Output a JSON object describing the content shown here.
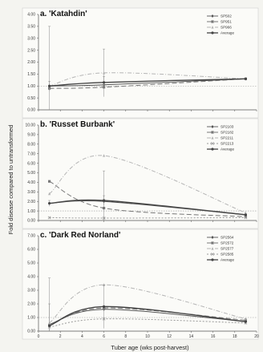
{
  "figure": {
    "ylabel": "Fold disease compared to untransformed",
    "xlabel": "Tuber age (wks post-harvest)",
    "x_ticks": [
      0,
      2,
      4,
      6,
      8,
      10,
      12,
      14,
      16,
      18,
      20
    ]
  },
  "chart_data": [
    {
      "type": "line",
      "panel": "a.",
      "title": "'Katahdin'",
      "ylim": [
        0,
        4.0
      ],
      "yticks": [
        "0.00",
        "0.50",
        "1.00",
        "1.50",
        "2.00",
        "2.50",
        "3.00",
        "3.50",
        "4.00"
      ],
      "xlim": [
        0,
        20
      ],
      "x": [
        1,
        6,
        19
      ],
      "series": [
        {
          "name": "SP502",
          "values": [
            1.0,
            1.05,
            1.3
          ],
          "color": "#555555",
          "dash": "",
          "marker": "diamond",
          "error": [
            0.05,
            0.05,
            0.05
          ]
        },
        {
          "name": "SP951",
          "values": [
            0.9,
            0.95,
            1.3
          ],
          "color": "#777777",
          "dash": "6,3",
          "marker": "square",
          "error": [
            0.05,
            0.05,
            0.05
          ]
        },
        {
          "name": "SP966",
          "values": [
            1.0,
            1.55,
            1.3
          ],
          "color": "#b5b5b5",
          "dash": "5,2,1,2",
          "marker": "triangle",
          "error": [
            2.5,
            1.0,
            0.05
          ]
        },
        {
          "name": "Average",
          "values": [
            1.0,
            1.15,
            1.3
          ],
          "color": "#444444",
          "dash": "",
          "marker": "circle",
          "bold": true,
          "error": [
            0.2,
            0.25,
            0.05
          ]
        }
      ]
    },
    {
      "type": "line",
      "panel": "b.",
      "title": "'Russet Burbank'",
      "ylim": [
        0,
        10.0
      ],
      "yticks": [
        "0.00",
        "1.00",
        "2.00",
        "3.00",
        "4.00",
        "5.00",
        "6.00",
        "7.00",
        "8.00",
        "9.00",
        "10.00"
      ],
      "xlim": [
        0,
        20
      ],
      "x": [
        1,
        6,
        19
      ],
      "series": [
        {
          "name": "SP2103",
          "values": [
            1.8,
            2.0,
            0.6
          ],
          "color": "#555555",
          "dash": "",
          "marker": "diamond",
          "error": [
            0.05,
            3.2,
            0.05
          ]
        },
        {
          "name": "SP2182",
          "values": [
            4.1,
            1.3,
            0.4
          ],
          "color": "#777777",
          "dash": "6,3",
          "marker": "square",
          "error": [
            0.05,
            0.05,
            0.05
          ]
        },
        {
          "name": "SP2211",
          "values": [
            2.8,
            6.8,
            0.8
          ],
          "color": "#b5b5b5",
          "dash": "5,2,1,2",
          "marker": "triangle",
          "error": [
            0.05,
            0.05,
            0.05
          ]
        },
        {
          "name": "SP2213",
          "values": [
            0.3,
            0.25,
            0.3
          ],
          "color": "#999999",
          "dash": "2,2",
          "marker": "x",
          "error": [
            0.05,
            0.05,
            0.05
          ]
        },
        {
          "name": "Average",
          "values": [
            1.8,
            2.1,
            0.6
          ],
          "color": "#444444",
          "dash": "",
          "marker": "circle",
          "bold": true,
          "error": [
            0.3,
            0.5,
            0.05
          ]
        }
      ]
    },
    {
      "type": "line",
      "panel": "c.",
      "title": "'Dark Red Norland'",
      "ylim": [
        0,
        7.0
      ],
      "yticks": [
        "0.00",
        "1.00",
        "2.00",
        "3.00",
        "4.00",
        "5.00",
        "6.00",
        "7.00"
      ],
      "xlim": [
        0,
        20
      ],
      "x": [
        1,
        6,
        19
      ],
      "series": [
        {
          "name": "SP2564",
          "values": [
            0.5,
            1.6,
            0.7
          ],
          "color": "#555555",
          "dash": "",
          "marker": "diamond",
          "error": [
            0.05,
            0.05,
            0.05
          ]
        },
        {
          "name": "SP2572",
          "values": [
            0.4,
            1.7,
            0.8
          ],
          "color": "#777777",
          "dash": "6,3",
          "marker": "square",
          "error": [
            0.05,
            0.05,
            0.05
          ]
        },
        {
          "name": "SP2577",
          "values": [
            0.6,
            3.4,
            0.9
          ],
          "color": "#b5b5b5",
          "dash": "5,2,1,2",
          "marker": "triangle",
          "error": [
            3.3,
            0.05,
            0.05
          ]
        },
        {
          "name": "SP2585",
          "values": [
            0.3,
            0.9,
            0.6
          ],
          "color": "#999999",
          "dash": "2,2",
          "marker": "x",
          "error": [
            0.05,
            0.05,
            0.05
          ]
        },
        {
          "name": "Average",
          "values": [
            0.4,
            1.8,
            0.7
          ],
          "color": "#444444",
          "dash": "",
          "marker": "circle",
          "bold": true,
          "error": [
            1.6,
            1.6,
            0.2
          ]
        }
      ]
    }
  ]
}
